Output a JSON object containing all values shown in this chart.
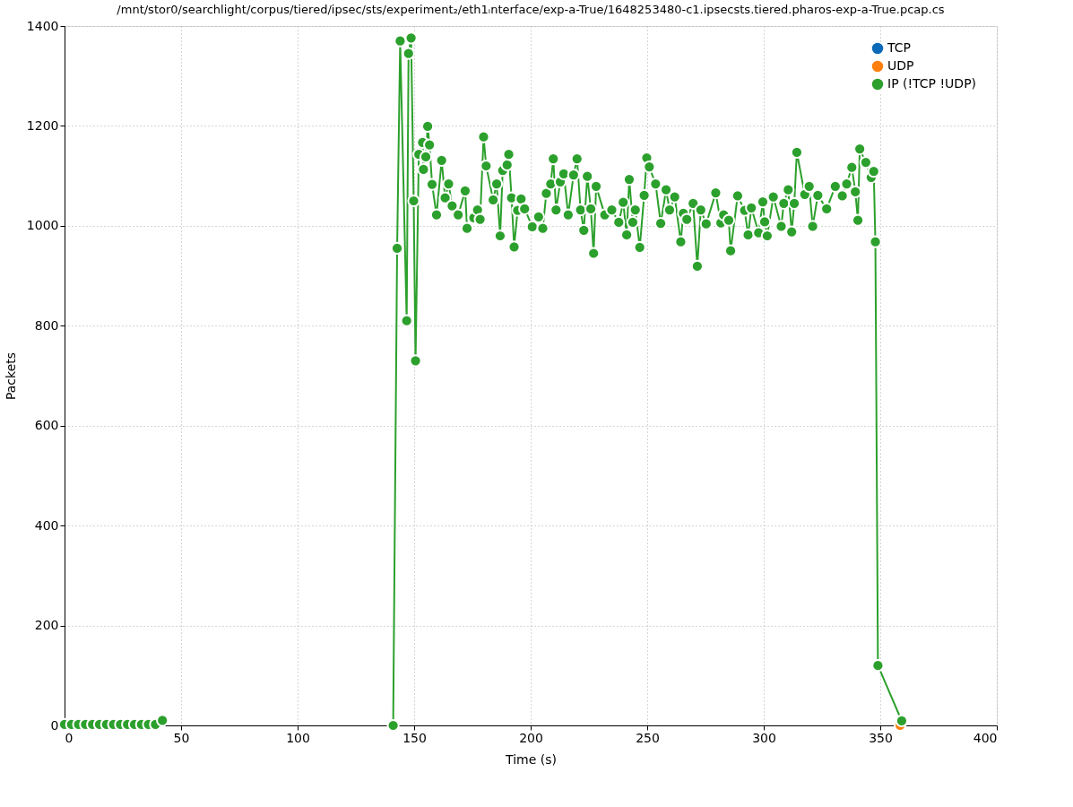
{
  "chart_data": {
    "type": "line",
    "title": "/mnt/stor0/searchlight/corpus/tiered/ipsec/sts/experiment₂/eth1ᵢnterface/exp-a-True/1648253480-c1.ipsecsts.tiered.pharos-exp-a-True.pcap.cs",
    "xlabel": "Time (s)",
    "ylabel": "Packets",
    "xlim": [
      0,
      400
    ],
    "ylim": [
      0,
      1400
    ],
    "xticks": [
      0,
      50,
      100,
      150,
      200,
      250,
      300,
      350,
      400
    ],
    "yticks": [
      0,
      200,
      400,
      600,
      800,
      1000,
      1200,
      1400
    ],
    "grid": true,
    "legend": "top right",
    "marker": "circle",
    "line_style": "solid",
    "series": [
      {
        "name": "TCP",
        "color": "#0b6ab8"
      },
      {
        "name": "UDP",
        "color": "#ff7f0e",
        "x": [
          358.5
        ],
        "values": [
          0
        ]
      },
      {
        "name": "IP (!TCP  !UDP)",
        "color": "#2ca02c",
        "x": [
          0,
          3,
          6,
          9,
          12,
          15,
          18,
          21,
          24,
          27,
          30,
          33,
          36,
          39,
          42,
          90,
          141,
          142.7,
          144,
          146.8,
          147.6,
          148.7,
          149.8,
          150.6,
          152,
          153.6,
          154,
          155,
          155.8,
          156.6,
          157.7,
          159.6,
          161.8,
          163.3,
          164.8,
          166.3,
          168.9,
          171.9,
          172.7,
          175.6,
          177.2,
          178.3,
          179.8,
          180.9,
          183.9,
          185.4,
          186.9,
          188,
          189.9,
          190.6,
          191.8,
          192.9,
          194.4,
          195.9,
          197.4,
          200.7,
          203.4,
          205.2,
          206.7,
          208.6,
          209.7,
          210.9,
          212.7,
          214.2,
          216.1,
          218.4,
          219.9,
          221.4,
          222.8,
          224.3,
          225.8,
          227,
          228.1,
          231.8,
          234.8,
          237.8,
          239.7,
          241.2,
          242.3,
          243.8,
          244.9,
          246.8,
          248.7,
          249.8,
          250.9,
          253.6,
          255.8,
          258.1,
          259.6,
          261.8,
          264.4,
          265.5,
          267,
          269.7,
          271.5,
          273,
          275.3,
          279.4,
          281.6,
          282.8,
          285,
          285.8,
          288.8,
          291.8,
          293.3,
          294.7,
          297.8,
          299.6,
          300.4,
          301.5,
          304.1,
          307.5,
          308.6,
          310.5,
          312,
          313.1,
          314.2,
          317.6,
          319.5,
          321,
          323.2,
          327,
          330.7,
          333.7,
          335.6,
          337.8,
          339.3,
          340.4,
          341.2,
          343.8,
          346.1,
          347.2,
          347.9,
          349,
          359.2
        ],
        "values": [
          2,
          2,
          2,
          2,
          2,
          2,
          2,
          2,
          2,
          2,
          2,
          2,
          2,
          2,
          10,
          null,
          0,
          955,
          1370,
          810,
          1345,
          1376,
          1050,
          730,
          1143,
          1167,
          1113,
          1138,
          1199,
          1162,
          1083,
          1022,
          1131,
          1056,
          1084,
          1040,
          1022,
          1070,
          995,
          1016,
          1032,
          1013,
          1178,
          1120,
          1052,
          1084,
          980,
          1111,
          1122,
          1143,
          1056,
          958,
          1031,
          1054,
          1034,
          998,
          1018,
          995,
          1065,
          1084,
          1134,
          1032,
          1088,
          1104,
          1022,
          1102,
          1134,
          1032,
          991,
          1099,
          1034,
          945,
          1079,
          1022,
          1032,
          1007,
          1047,
          982,
          1093,
          1007,
          1032,
          957,
          1061,
          1136,
          1118,
          1084,
          1005,
          1072,
          1032,
          1058,
          968,
          1025,
          1013,
          1045,
          919,
          1032,
          1004,
          1066,
          1006,
          1022,
          1011,
          950,
          1060,
          1031,
          982,
          1036,
          986,
          1048,
          1008,
          980,
          1058,
          999,
          1045,
          1072,
          988,
          1045,
          1147,
          1063,
          1079,
          999,
          1061,
          1034,
          1079,
          1060,
          1084,
          1117,
          1068,
          1011,
          1154,
          1127,
          1097,
          1109,
          968,
          120,
          9
        ]
      }
    ]
  }
}
